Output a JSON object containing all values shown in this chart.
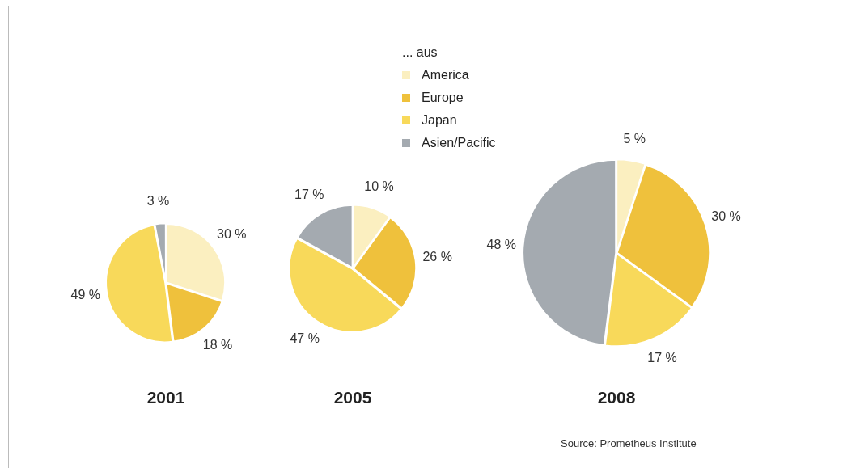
{
  "chart_data": [
    {
      "type": "pie",
      "title": "2001",
      "values": [
        30,
        18,
        49,
        3
      ],
      "colors": [
        "#fbefc0",
        "#efc13c",
        "#f8d95a",
        "#a4aab0"
      ],
      "value_labels": [
        "30 %",
        "18 %",
        "49 %",
        "3 %"
      ]
    },
    {
      "type": "pie",
      "title": "2005",
      "categories": [
        "America",
        "Europe",
        "Japan",
        "Asien/Pacific"
      ],
      "values": [
        10,
        26,
        47,
        17
      ],
      "colors": [
        "#fbefc0",
        "#efc13c",
        "#f8d95a",
        "#a4aab0"
      ],
      "value_labels": [
        "10 %",
        "26 %",
        "47 %",
        "17 %"
      ],
      "legend": "top",
      "legend_title": "... aus"
    },
    {
      "type": "pie",
      "title": "2008",
      "values": [
        5,
        30,
        17,
        48
      ],
      "colors": [
        "#fbefc0",
        "#efc13c",
        "#f8d95a",
        "#a4aab0"
      ],
      "value_labels": [
        "5 %",
        "30 %",
        "17 %",
        "48 %"
      ],
      "annotations": [
        "Source: Prometheus Institute"
      ]
    }
  ]
}
